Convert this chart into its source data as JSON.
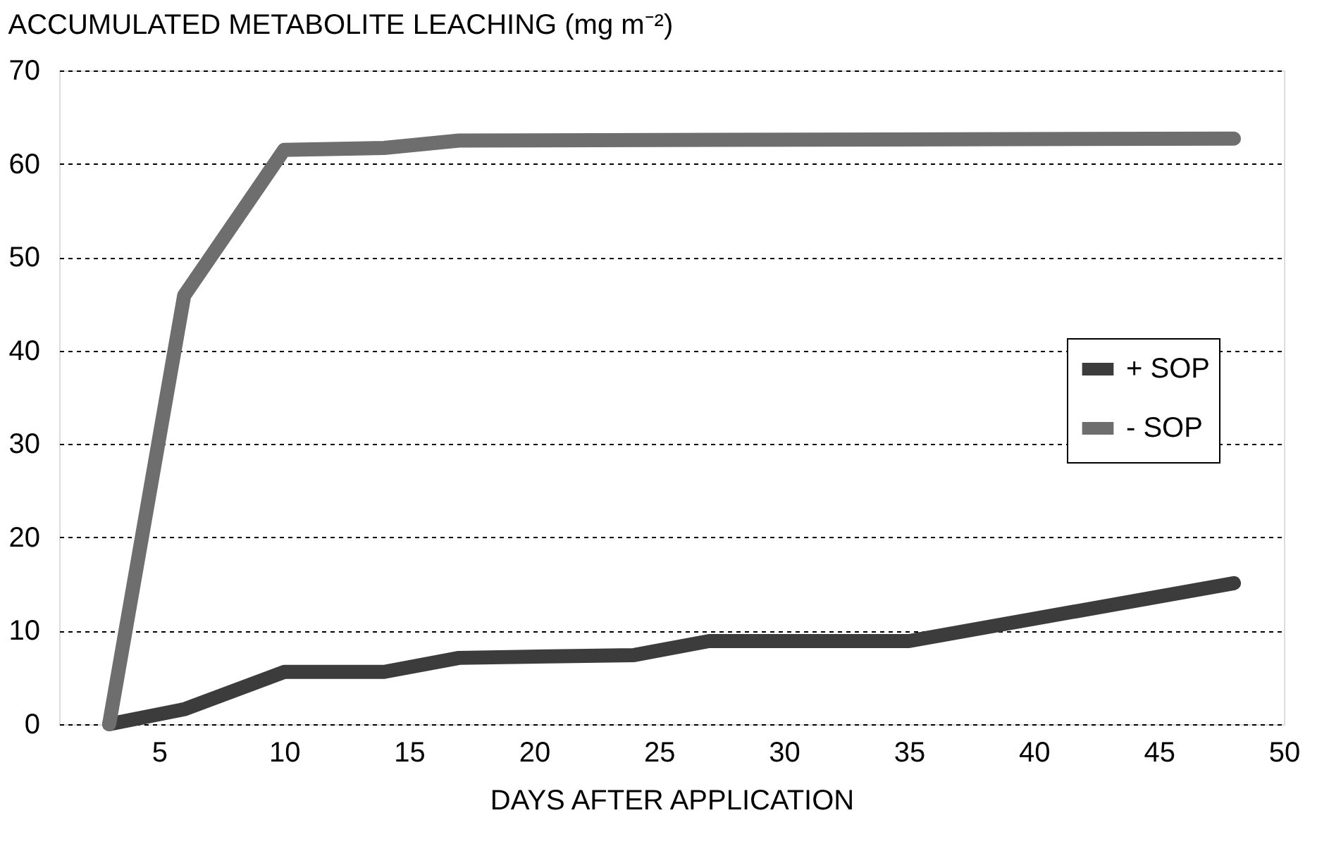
{
  "chart_data": {
    "type": "line",
    "title": "ACCUMULATED METABOLITE LEACHING (mg m⁻²)",
    "xlabel": "DAYS AFTER APPLICATION",
    "series": [
      {
        "name": "+ SOP",
        "color": "#3c3c3c",
        "x": [
          3,
          6,
          10,
          14,
          17,
          24,
          27,
          35,
          48
        ],
        "values": [
          0,
          1.6,
          5.6,
          5.6,
          7.1,
          7.4,
          8.9,
          8.9,
          15.1
        ]
      },
      {
        "name": "- SOP",
        "color": "#6e6e6e",
        "x": [
          3,
          6,
          10,
          14,
          17,
          48
        ],
        "values": [
          0,
          45.9,
          61.5,
          61.7,
          62.5,
          62.7
        ]
      }
    ],
    "xlim": [
      1,
      50
    ],
    "xticks": [
      5,
      10,
      15,
      20,
      25,
      30,
      35,
      40,
      45,
      50
    ],
    "ylim": [
      0,
      70
    ],
    "yticks": [
      0,
      10,
      20,
      30,
      40,
      50,
      60,
      70
    ],
    "grid": "y",
    "legend": "right",
    "marker": "none",
    "line_style": "solid"
  }
}
